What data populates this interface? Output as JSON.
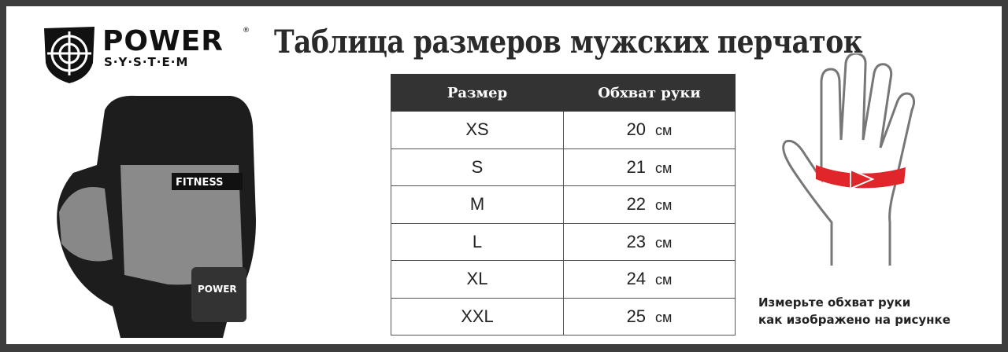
{
  "brand": {
    "name": "POWER",
    "sub": "S·Y·S·T·E·M",
    "reg": "®"
  },
  "title": "Таблица размеров мужских перчаток",
  "table": {
    "headers": [
      "Размер",
      "Обхват руки"
    ],
    "rows": [
      [
        "XS",
        "20",
        "см"
      ],
      [
        "S",
        "21",
        "см"
      ],
      [
        "M",
        "22",
        "см"
      ],
      [
        "L",
        "23",
        "см"
      ],
      [
        "XL",
        "24",
        "см"
      ],
      [
        "XXL",
        "25",
        "см"
      ]
    ]
  },
  "glove": {
    "label": "FITNESS",
    "strap": "POWER"
  },
  "note": {
    "line1": "Измерьте обхват руки",
    "line2": "как изображено на рисунке"
  },
  "colors": {
    "frame": "#3d3d3d",
    "header": "#333333",
    "arrow": "#e0262a"
  }
}
